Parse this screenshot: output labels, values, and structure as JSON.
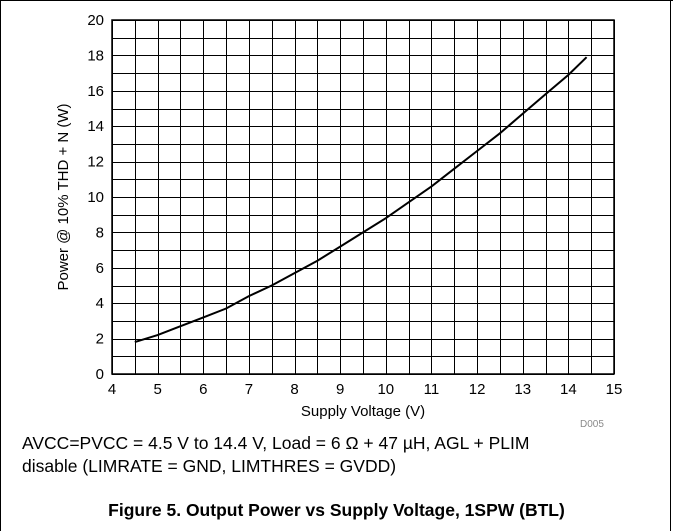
{
  "chart_data": {
    "type": "line",
    "xlabel": "Supply Voltage (V)",
    "ylabel": "Power @ 10% THD + N (W)",
    "xlim": [
      4,
      15
    ],
    "ylim": [
      0,
      20
    ],
    "xticks": [
      4,
      5,
      6,
      7,
      8,
      9,
      10,
      11,
      12,
      13,
      14,
      15
    ],
    "yticks": [
      0,
      2,
      4,
      6,
      8,
      10,
      12,
      14,
      16,
      18,
      20
    ],
    "x_minor_step": 0.5,
    "y_minor_step": 1,
    "grid": true,
    "series": [
      {
        "x": [
          4.5,
          5,
          5.5,
          6,
          6.5,
          7,
          7.5,
          8,
          8.5,
          9,
          9.5,
          10,
          10.5,
          11,
          11.5,
          12,
          12.5,
          13,
          13.5,
          14,
          14.4
        ],
        "y": [
          1.8,
          2.2,
          2.7,
          3.2,
          3.7,
          4.4,
          5.0,
          5.7,
          6.4,
          7.2,
          8.0,
          8.8,
          9.7,
          10.6,
          11.6,
          12.6,
          13.6,
          14.7,
          15.8,
          16.9,
          17.9
        ]
      }
    ],
    "figure_id": "D005",
    "caption_line1": "AVCC=PVCC = 4.5 V to 14.4 V, Load = 6 Ω + 47 µH, AGL + PLIM",
    "caption_line2": "disable (LIMRATE = GND, LIMTHRES = GVDD)",
    "title": "Figure 5. Output Power vs Supply Voltage, 1SPW (BTL)"
  },
  "colors": {
    "line": "#000000",
    "grid": "#000000",
    "figure_id": "#8a8a8a"
  }
}
